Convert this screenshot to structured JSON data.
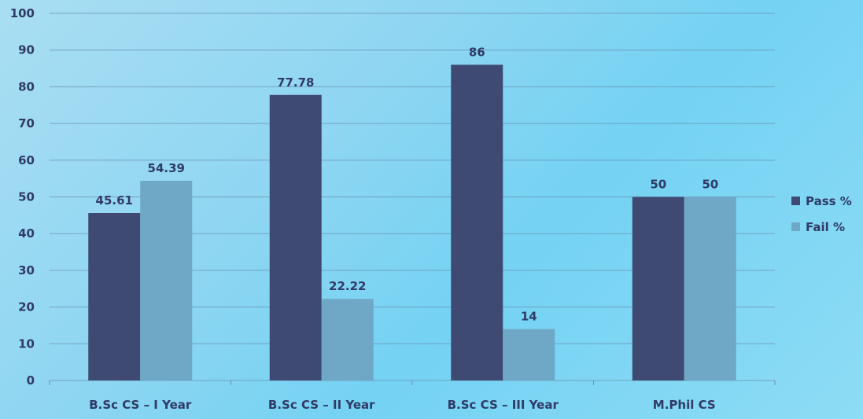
{
  "chart_data": {
    "type": "bar",
    "categories": [
      "B.Sc CS – I Year",
      "B.Sc CS – II Year",
      "B.Sc CS – III Year",
      "M.Phil CS"
    ],
    "series": [
      {
        "name": "Pass %",
        "values": [
          45.61,
          77.78,
          86,
          50
        ],
        "color": "#3f4a73",
        "labels": [
          "45.61",
          "77.78",
          "86",
          "50"
        ]
      },
      {
        "name": "Fail %",
        "values": [
          54.39,
          22.22,
          14,
          50
        ],
        "color": "#6fa7c6",
        "labels": [
          "54.39",
          "22.22",
          "14",
          "50"
        ]
      }
    ],
    "ylim": [
      0,
      100
    ],
    "yticks": [
      0,
      10,
      20,
      30,
      40,
      50,
      60,
      70,
      80,
      90,
      100
    ],
    "grid": true,
    "legend": "right",
    "title": "",
    "xlabel": "",
    "ylabel": ""
  }
}
